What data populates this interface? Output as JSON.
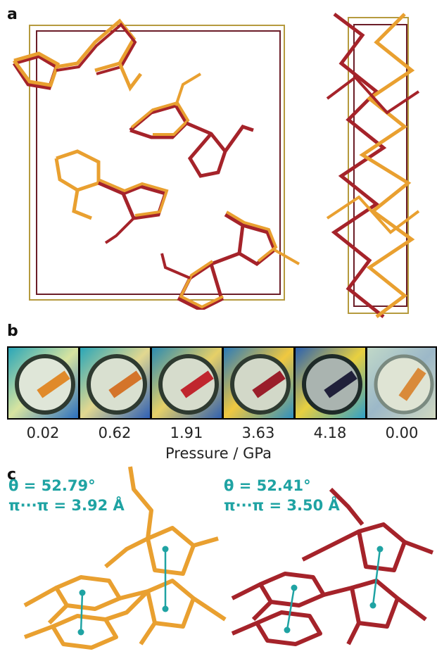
{
  "panels": {
    "a": "a",
    "b": "b",
    "c": "c"
  },
  "panel_b": {
    "pressures": [
      "0.02",
      "0.62",
      "1.91",
      "3.63",
      "4.18",
      "0.00"
    ],
    "axis_title": "Pressure / GPa",
    "crystal_colors": [
      "#e08a2a",
      "#d4742a",
      "#c0262e",
      "#9a1e2a",
      "#20203a",
      "#d98a3a"
    ]
  },
  "panel_c": {
    "left": {
      "theta": "θ = 52.79°",
      "pipi": "π···π = 3.92 Å"
    },
    "right": {
      "theta": "θ = 52.41°",
      "pipi": "π···π = 3.50 Å"
    }
  },
  "colors": {
    "orange": "#e9a030",
    "red": "#a5232a",
    "teal": "#1fa3a3",
    "cell_gold": "#b59a3e",
    "cell_maroon": "#6b1d28"
  }
}
